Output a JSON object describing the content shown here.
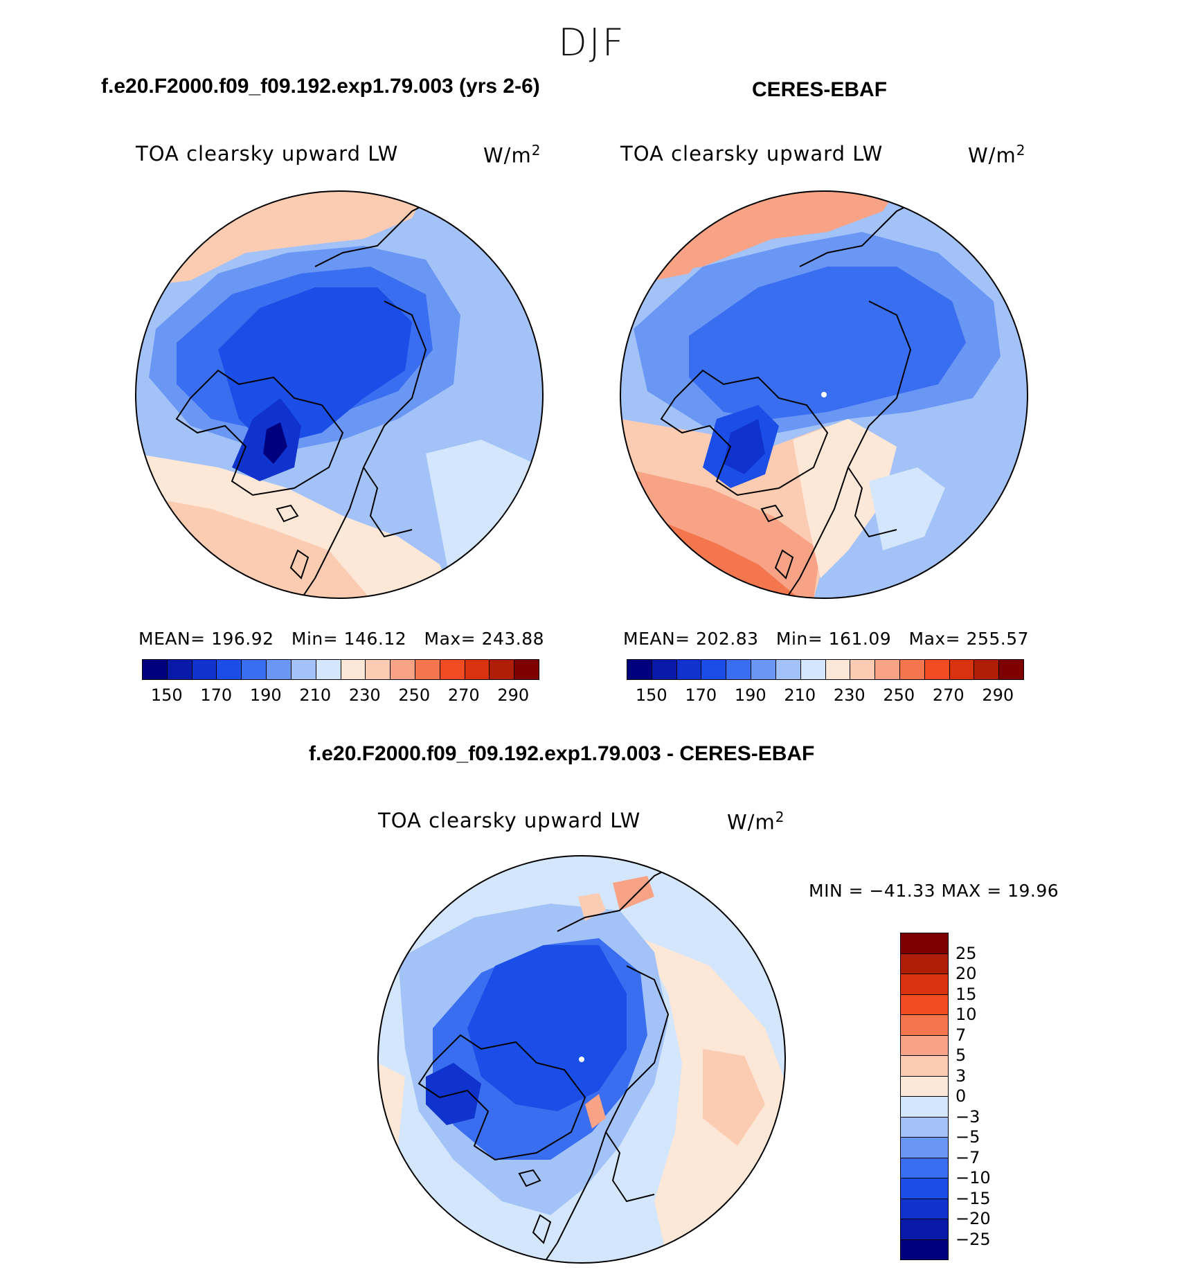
{
  "season": "DJF",
  "panels": [
    {
      "title": "f.e20.F2000.f09_f09.192.exp1.79.003 (yrs 2-6)",
      "variable": "TOA clearsky upward LW",
      "units": "W/m",
      "units_exp": "2",
      "stats": {
        "mean_label": "MEAN=",
        "mean": "196.92",
        "min_label": "Min=",
        "min": "146.12",
        "max_label": "Max=",
        "max": "243.88"
      }
    },
    {
      "title": "CERES-EBAF",
      "variable": "TOA clearsky upward LW",
      "units": "W/m",
      "units_exp": "2",
      "stats": {
        "mean_label": "MEAN=",
        "mean": "202.83",
        "min_label": "Min=",
        "min": "161.09",
        "max_label": "Max=",
        "max": "255.57"
      }
    },
    {
      "title": "f.e20.F2000.f09_f09.192.exp1.79.003 - CERES-EBAF",
      "variable": "TOA clearsky upward LW",
      "units": "W/m",
      "units_exp": "2",
      "stats_text": "MIN = −41.33 MAX =   19.96"
    }
  ],
  "abs_colorbar": {
    "colors": [
      "#00007f",
      "#0a1aa8",
      "#0f33cc",
      "#1a4ee6",
      "#3a6ef0",
      "#6a96f4",
      "#a3c3f8",
      "#d3e6fb",
      "#fde8d8",
      "#fbcbb2",
      "#f8a385",
      "#f4764f",
      "#f14b23",
      "#d9320f",
      "#b01e07",
      "#7f0000"
    ],
    "ticks": [
      "150",
      "170",
      "190",
      "210",
      "230",
      "250",
      "270",
      "290"
    ]
  },
  "diff_colorbar": {
    "colors": [
      "#7f0000",
      "#b01e07",
      "#d9320f",
      "#f14b23",
      "#f4764f",
      "#f8a385",
      "#fbcbb2",
      "#fde8d8",
      "#d3e6fb",
      "#a3c3f8",
      "#6a96f4",
      "#3a6ef0",
      "#1a4ee6",
      "#0f33cc",
      "#0a1aa8",
      "#00007f"
    ],
    "ticks": [
      "25",
      "20",
      "15",
      "10",
      "7",
      "5",
      "3",
      "0",
      "−3",
      "−5",
      "−7",
      "−10",
      "−15",
      "−20",
      "−25"
    ]
  }
}
